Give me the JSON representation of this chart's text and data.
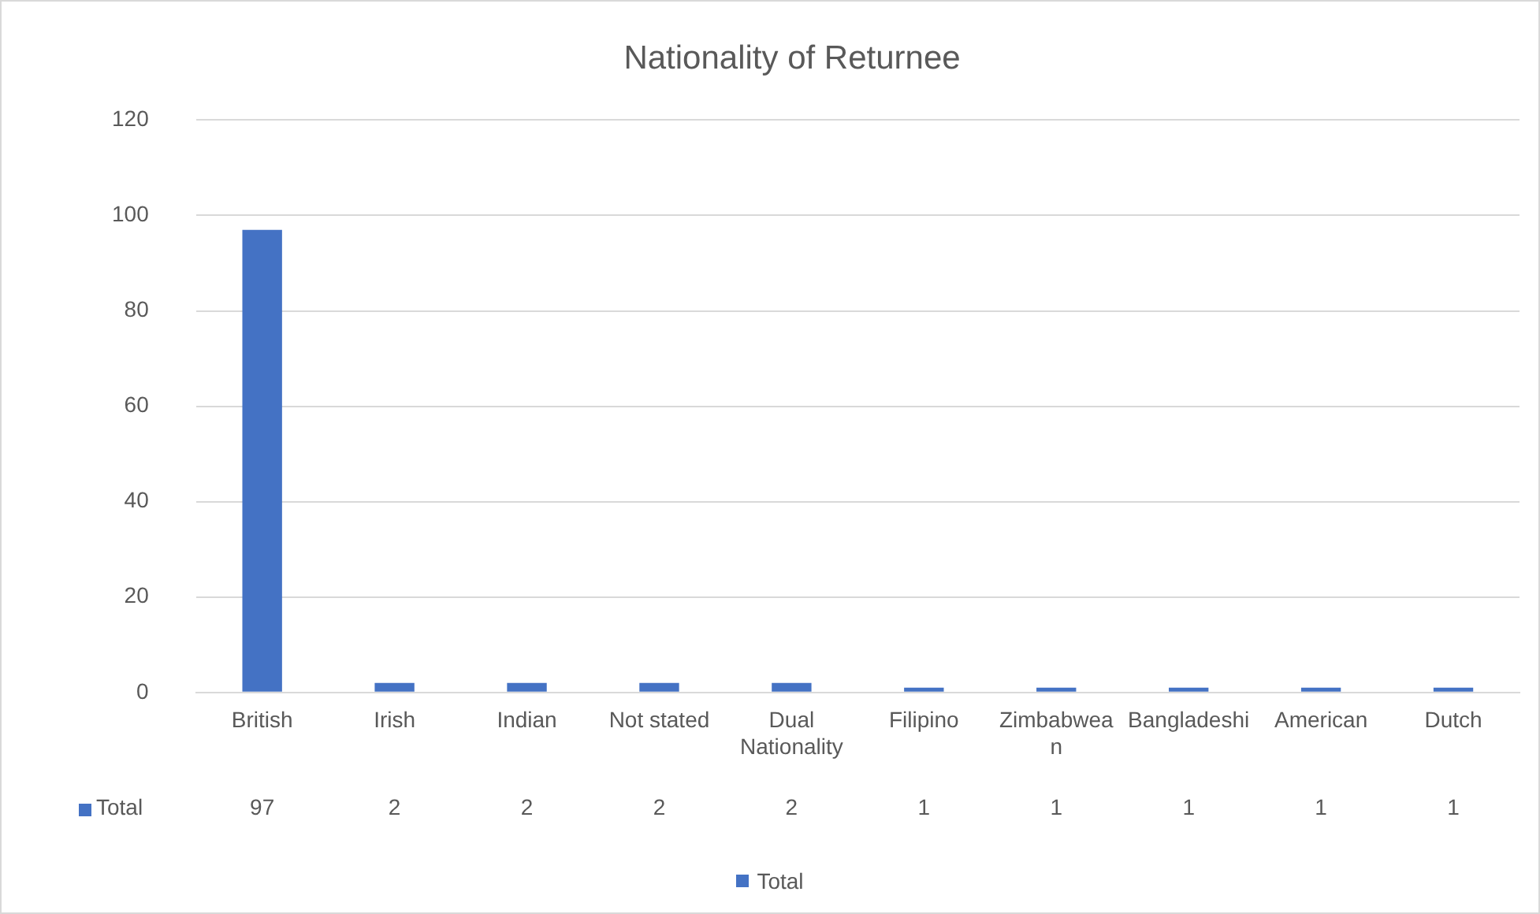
{
  "chart_data": {
    "type": "bar",
    "title": "Nationality of Returnee",
    "categories": [
      "British",
      "Irish",
      "Indian",
      "Not stated",
      "Dual Nationality",
      "Filipino",
      "Zimbabwean",
      "Bangladeshi",
      "American",
      "Dutch"
    ],
    "series": [
      {
        "name": "Total",
        "color": "#4472c4",
        "values": [
          97,
          2,
          2,
          2,
          2,
          1,
          1,
          1,
          1,
          1
        ]
      }
    ],
    "ylim": [
      0,
      120
    ],
    "yticks": [
      0,
      20,
      40,
      60,
      80,
      100,
      120
    ],
    "grid": "y",
    "legend": "bottom",
    "data_labels": true
  }
}
